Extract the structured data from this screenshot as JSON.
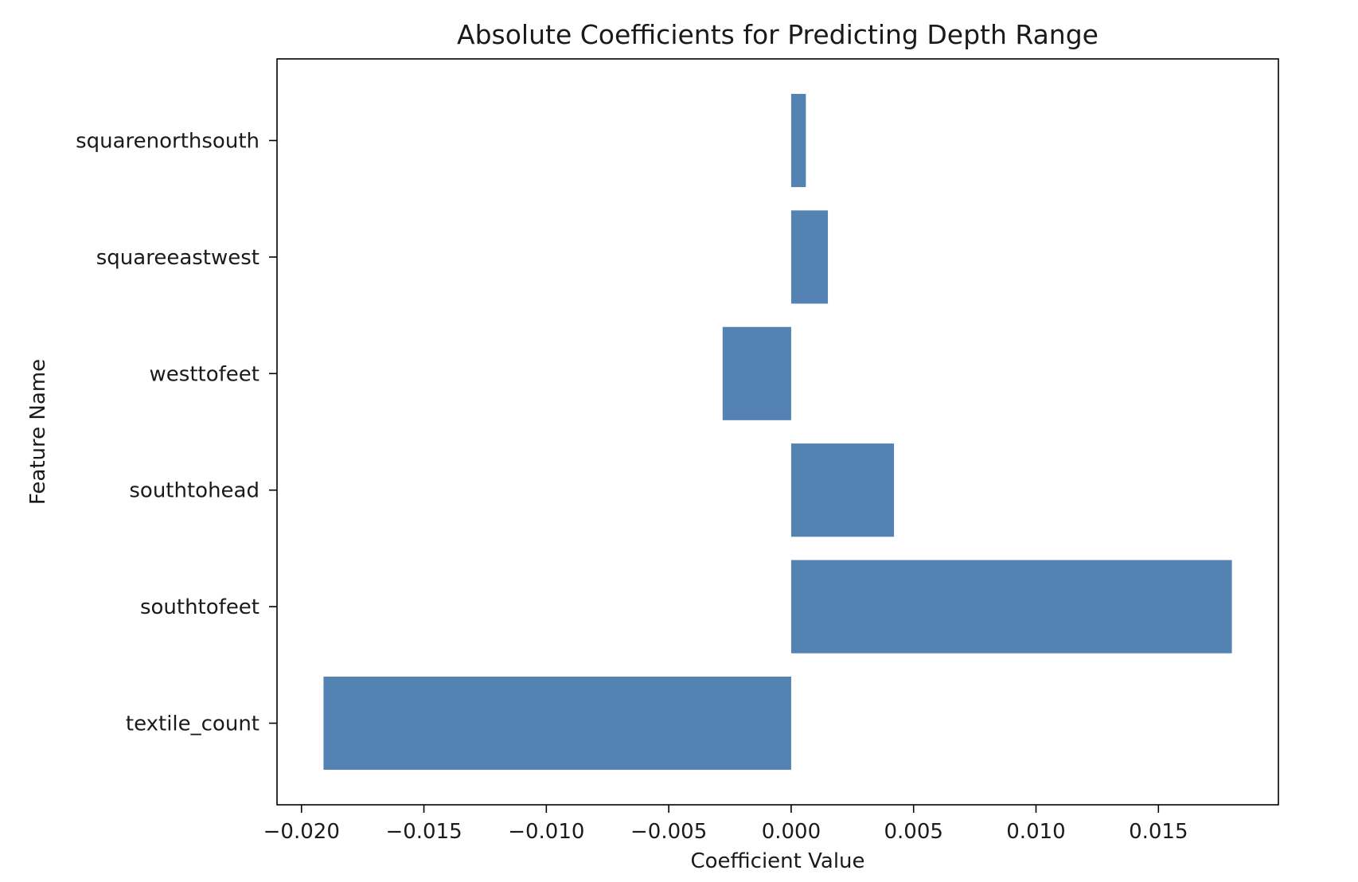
{
  "chart_data": {
    "type": "bar",
    "orientation": "horizontal",
    "title": "Absolute Coefficients for Predicting Depth Range",
    "xlabel": "Coefficient Value",
    "ylabel": "Feature Name",
    "categories": [
      "textile_count",
      "southtofeet",
      "southtohead",
      "westtofeet",
      "squareeastwest",
      "squarenorthsouth"
    ],
    "values": [
      -0.0191,
      0.018,
      0.0042,
      -0.0028,
      0.0015,
      0.0006
    ],
    "xlim": [
      -0.021,
      0.0199
    ],
    "xticks": [
      -0.02,
      -0.015,
      -0.01,
      -0.005,
      0.0,
      0.005,
      0.01,
      0.015
    ],
    "xtick_labels": [
      "−0.020",
      "−0.015",
      "−0.010",
      "−0.005",
      "0.000",
      "0.005",
      "0.010",
      "0.015"
    ],
    "grid": false,
    "bar_color": "#5482b2"
  }
}
